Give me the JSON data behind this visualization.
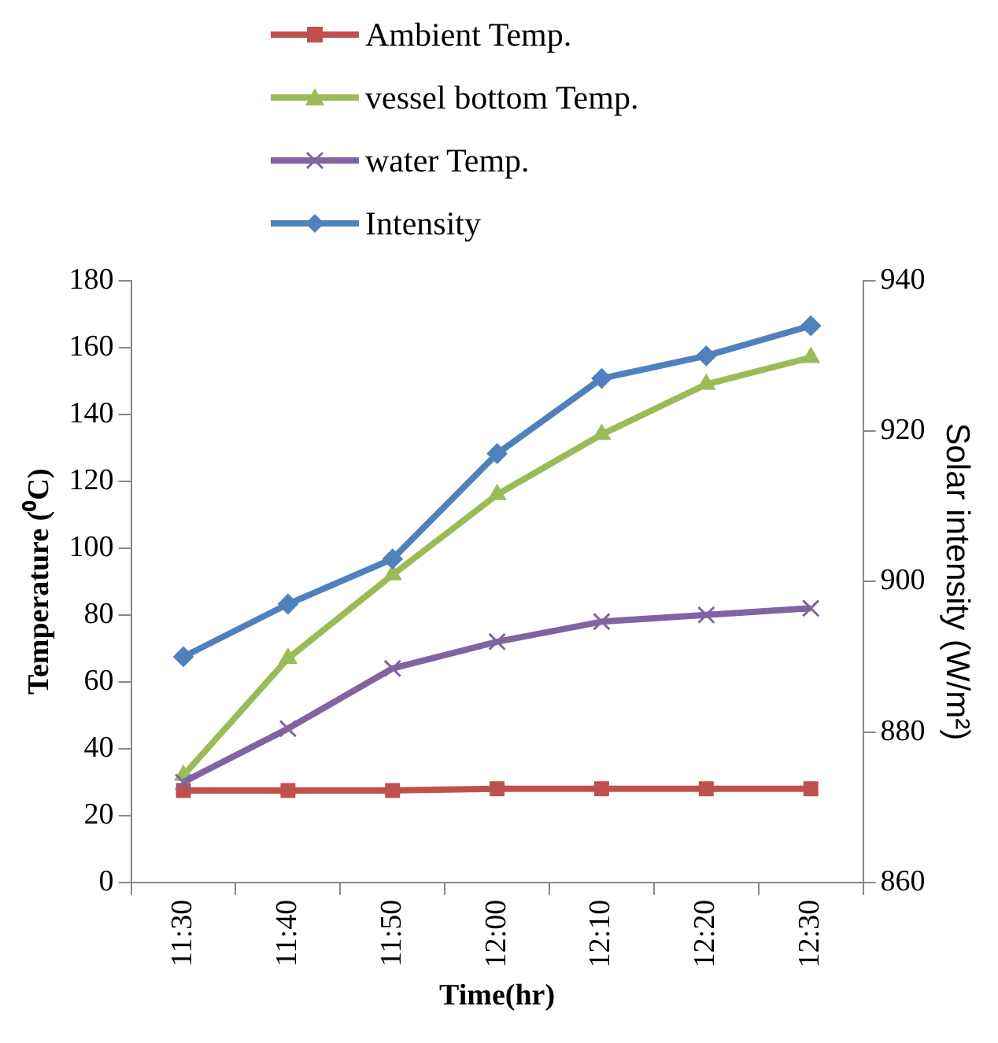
{
  "chart_data": {
    "type": "line",
    "xlabel": "Time(hr)",
    "ylabel": "Temperature (⁰C)",
    "y2label": "Solar intensity (W/m²)",
    "categories": [
      "11:30",
      "11:40",
      "11:50",
      "12:00",
      "12:10",
      "12:20",
      "12:30"
    ],
    "series": [
      {
        "name": "Ambient Temp.",
        "color": "#c0504d",
        "marker": "square",
        "values": [
          27.5,
          27.5,
          27.5,
          28,
          28,
          28,
          28
        ]
      },
      {
        "name": "vessel bottom  Temp.",
        "color": "#9bbb59",
        "marker": "triangle",
        "values": [
          32,
          67,
          92,
          116,
          134,
          149,
          157
        ]
      },
      {
        "name": "water Temp.",
        "color": "#8064a2",
        "marker": "cross",
        "values": [
          30,
          46,
          64,
          72,
          78,
          80,
          82
        ]
      },
      {
        "name": "Intensity",
        "color": "#4f81bd",
        "marker": "diamond",
        "axis": "y2",
        "values": [
          890,
          897,
          903,
          917,
          927,
          930,
          934
        ]
      }
    ],
    "ylim": [
      0,
      180
    ],
    "yticks": [
      0,
      20,
      40,
      60,
      80,
      100,
      120,
      140,
      160,
      180
    ],
    "y2lim": [
      860,
      940
    ],
    "y2ticks": [
      860,
      880,
      900,
      920,
      940
    ],
    "grid": false,
    "legend": "top",
    "line_style": "solid"
  }
}
